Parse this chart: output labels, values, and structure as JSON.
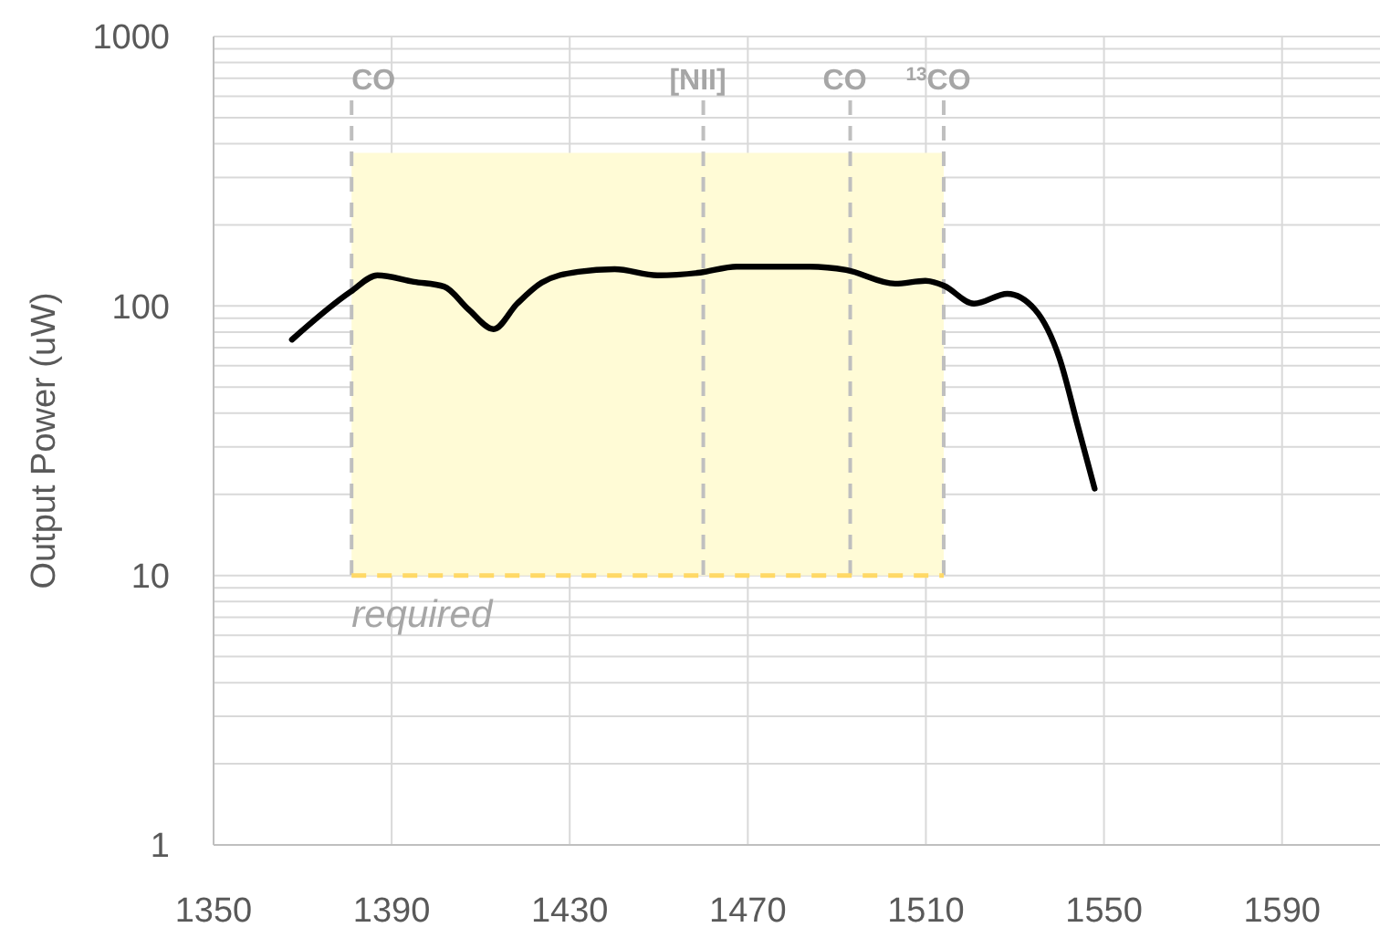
{
  "chart_data": {
    "type": "line",
    "ylabel": "Output Power (uW)",
    "log": true,
    "grid": true,
    "marker": "none",
    "line_style": "solid",
    "x": [
      1367.6,
      1380.8,
      1386.8,
      1395,
      1401.8,
      1407.3,
      1412.9,
      1418.2,
      1423.7,
      1431.9,
      1440.1,
      1449.7,
      1459.3,
      1467.5,
      1483.9,
      1492.1,
      1503.1,
      1509.9,
      1514,
      1520.8,
      1528.3,
      1534.5,
      1540,
      1544.1,
      1547.9
    ],
    "series": [
      {
        "color": "#000000",
        "values": [
          75,
          113,
          130,
          123,
          118,
          97,
          82,
          102,
          122,
          134,
          137,
          130,
          133,
          140,
          140,
          136,
          121,
          124,
          119,
          102,
          111,
          97,
          64,
          36,
          21
        ]
      }
    ],
    "xlim": [
      1350,
      1612
    ],
    "xticks": [
      1350,
      1390,
      1430,
      1470,
      1510,
      1550,
      1590
    ],
    "ylim": [
      1,
      1000
    ],
    "yticks": [
      1,
      10,
      100,
      1000
    ],
    "ref_lines": [
      {
        "axis": "x",
        "value": 1381,
        "label": "CO",
        "color": "#bfbfbf",
        "line_style": "dashed"
      },
      {
        "axis": "x",
        "value": 1460,
        "label": "[NII]",
        "color": "#bfbfbf",
        "line_style": "dashed"
      },
      {
        "axis": "x",
        "value": 1493,
        "label": "CO",
        "color": "#bfbfbf",
        "line_style": "dashed"
      },
      {
        "axis": "x",
        "value": 1514,
        "label": "$^{13}$CO",
        "color": "#bfbfbf",
        "line_style": "dashed"
      },
      {
        "axis": "y",
        "value": 10,
        "label": "required",
        "color": "#ffd966",
        "line_style": "dashed"
      }
    ],
    "bands": [
      {
        "axis": "y",
        "from": 10,
        "to": 370,
        "color": "#fffbd6"
      }
    ]
  }
}
